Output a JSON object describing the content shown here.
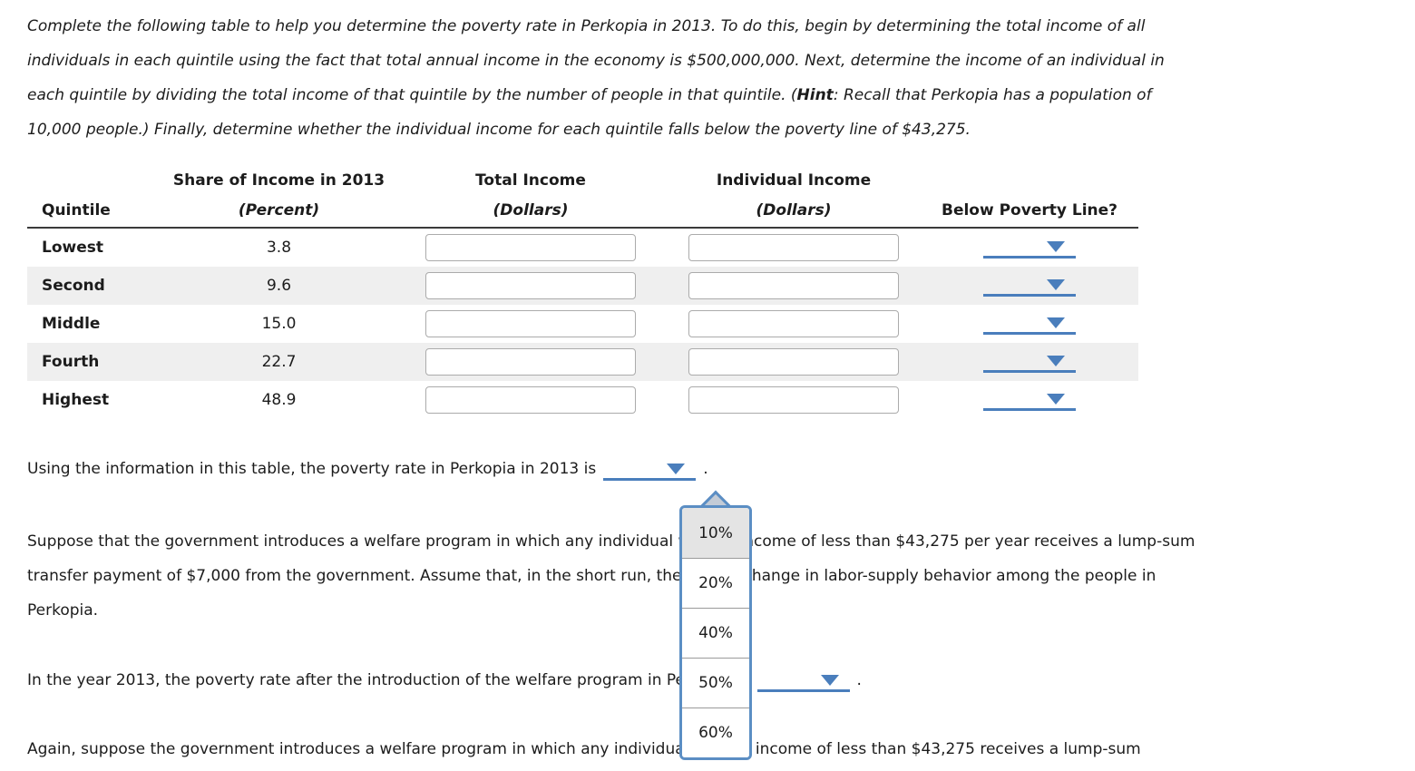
{
  "colors": {
    "accent_blue": "#4a7ebc",
    "menu_border_blue": "#5b8ec4",
    "row_shade": "#efefef"
  },
  "intro": {
    "line1": "Complete the following table to help you determine the poverty rate in Perkopia in 2013. To do this, begin by determining the total income of all",
    "line2": "individuals in each quintile using the fact that total annual income in the economy is $500,000,000. Next, determine the income of an individual in",
    "line3_pre": "each quintile by dividing the total income of that quintile by the number of people in that quintile. (",
    "line3_hint": "Hint",
    "line3_post": ": Recall that Perkopia has a population of",
    "line4": "10,000 people.) Finally, determine whether the individual income for each quintile falls below the poverty line of $43,275."
  },
  "table": {
    "headers": {
      "quintile": "Quintile",
      "share_line1": "Share of Income in 2013",
      "share_line2": "(Percent)",
      "total_line1": "Total Income",
      "total_line2": "(Dollars)",
      "individual_line1": "Individual Income",
      "individual_line2": "(Dollars)",
      "below_poverty": "Below Poverty Line?"
    },
    "rows": [
      {
        "quintile": "Lowest",
        "share": "3.8",
        "total_income": "",
        "individual_income": "",
        "below_poverty_selected": ""
      },
      {
        "quintile": "Second",
        "share": "9.6",
        "total_income": "",
        "individual_income": "",
        "below_poverty_selected": ""
      },
      {
        "quintile": "Middle",
        "share": "15.0",
        "total_income": "",
        "individual_income": "",
        "below_poverty_selected": ""
      },
      {
        "quintile": "Fourth",
        "share": "22.7",
        "total_income": "",
        "individual_income": "",
        "below_poverty_selected": ""
      },
      {
        "quintile": "Highest",
        "share": "48.9",
        "total_income": "",
        "individual_income": "",
        "below_poverty_selected": ""
      }
    ]
  },
  "q1": {
    "prefix": "Using the information in this table, the poverty rate in Perkopia in 2013 is",
    "suffix": "."
  },
  "welfare": {
    "line1": "Suppose that the government introduces a welfare program in which any individual with an income of less than $43,275 per year receives a lump-sum",
    "line2": "transfer payment of $7,000 from the government. Assume that, in the short run, there is no change in labor-supply behavior among the people in",
    "line3": "Perkopia."
  },
  "q2": {
    "prefix": "In the year 2013, the poverty rate after the introduction of the welfare program in Perkopia is",
    "suffix": "."
  },
  "q3_text": "Again, suppose the government introduces a welfare program in which any individual with an income of less than $43,275 receives a lump-sum",
  "dropdown": {
    "options": [
      "10%",
      "20%",
      "40%",
      "50%",
      "60%"
    ],
    "selected": "10%"
  }
}
